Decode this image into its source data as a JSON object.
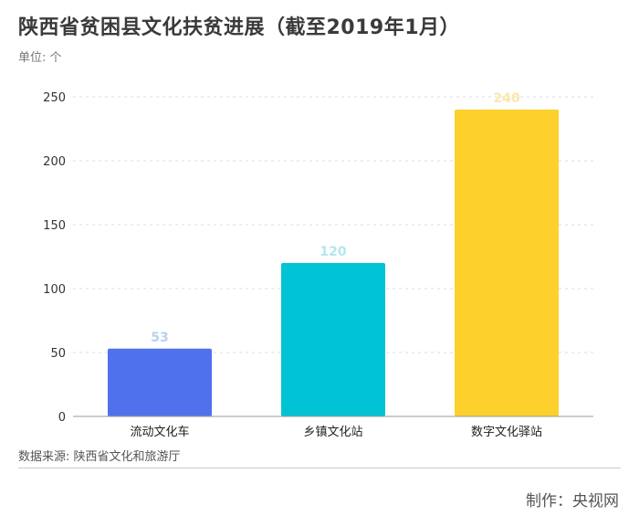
{
  "title": "陕西省贫困县文化扶贫进展（截至2019年1月）",
  "unit_label": "单位: 个",
  "source": "数据来源: 陕西省文化和旅游厅",
  "credit": "制作：央视网",
  "chart_data": {
    "type": "bar",
    "categories": [
      "流动文化车",
      "乡镇文化站",
      "数字文化驿站"
    ],
    "values": [
      53,
      120,
      240
    ],
    "ylim": [
      0,
      250
    ],
    "yticks": [
      0,
      50,
      100,
      150,
      200,
      250
    ],
    "colors": [
      "#4f72ec",
      "#00c4d6",
      "#fdd02c"
    ],
    "label_colors": [
      "#bcd0ee",
      "#b3e6ee",
      "#fbe7a8"
    ],
    "grid": true,
    "legend": "none"
  }
}
